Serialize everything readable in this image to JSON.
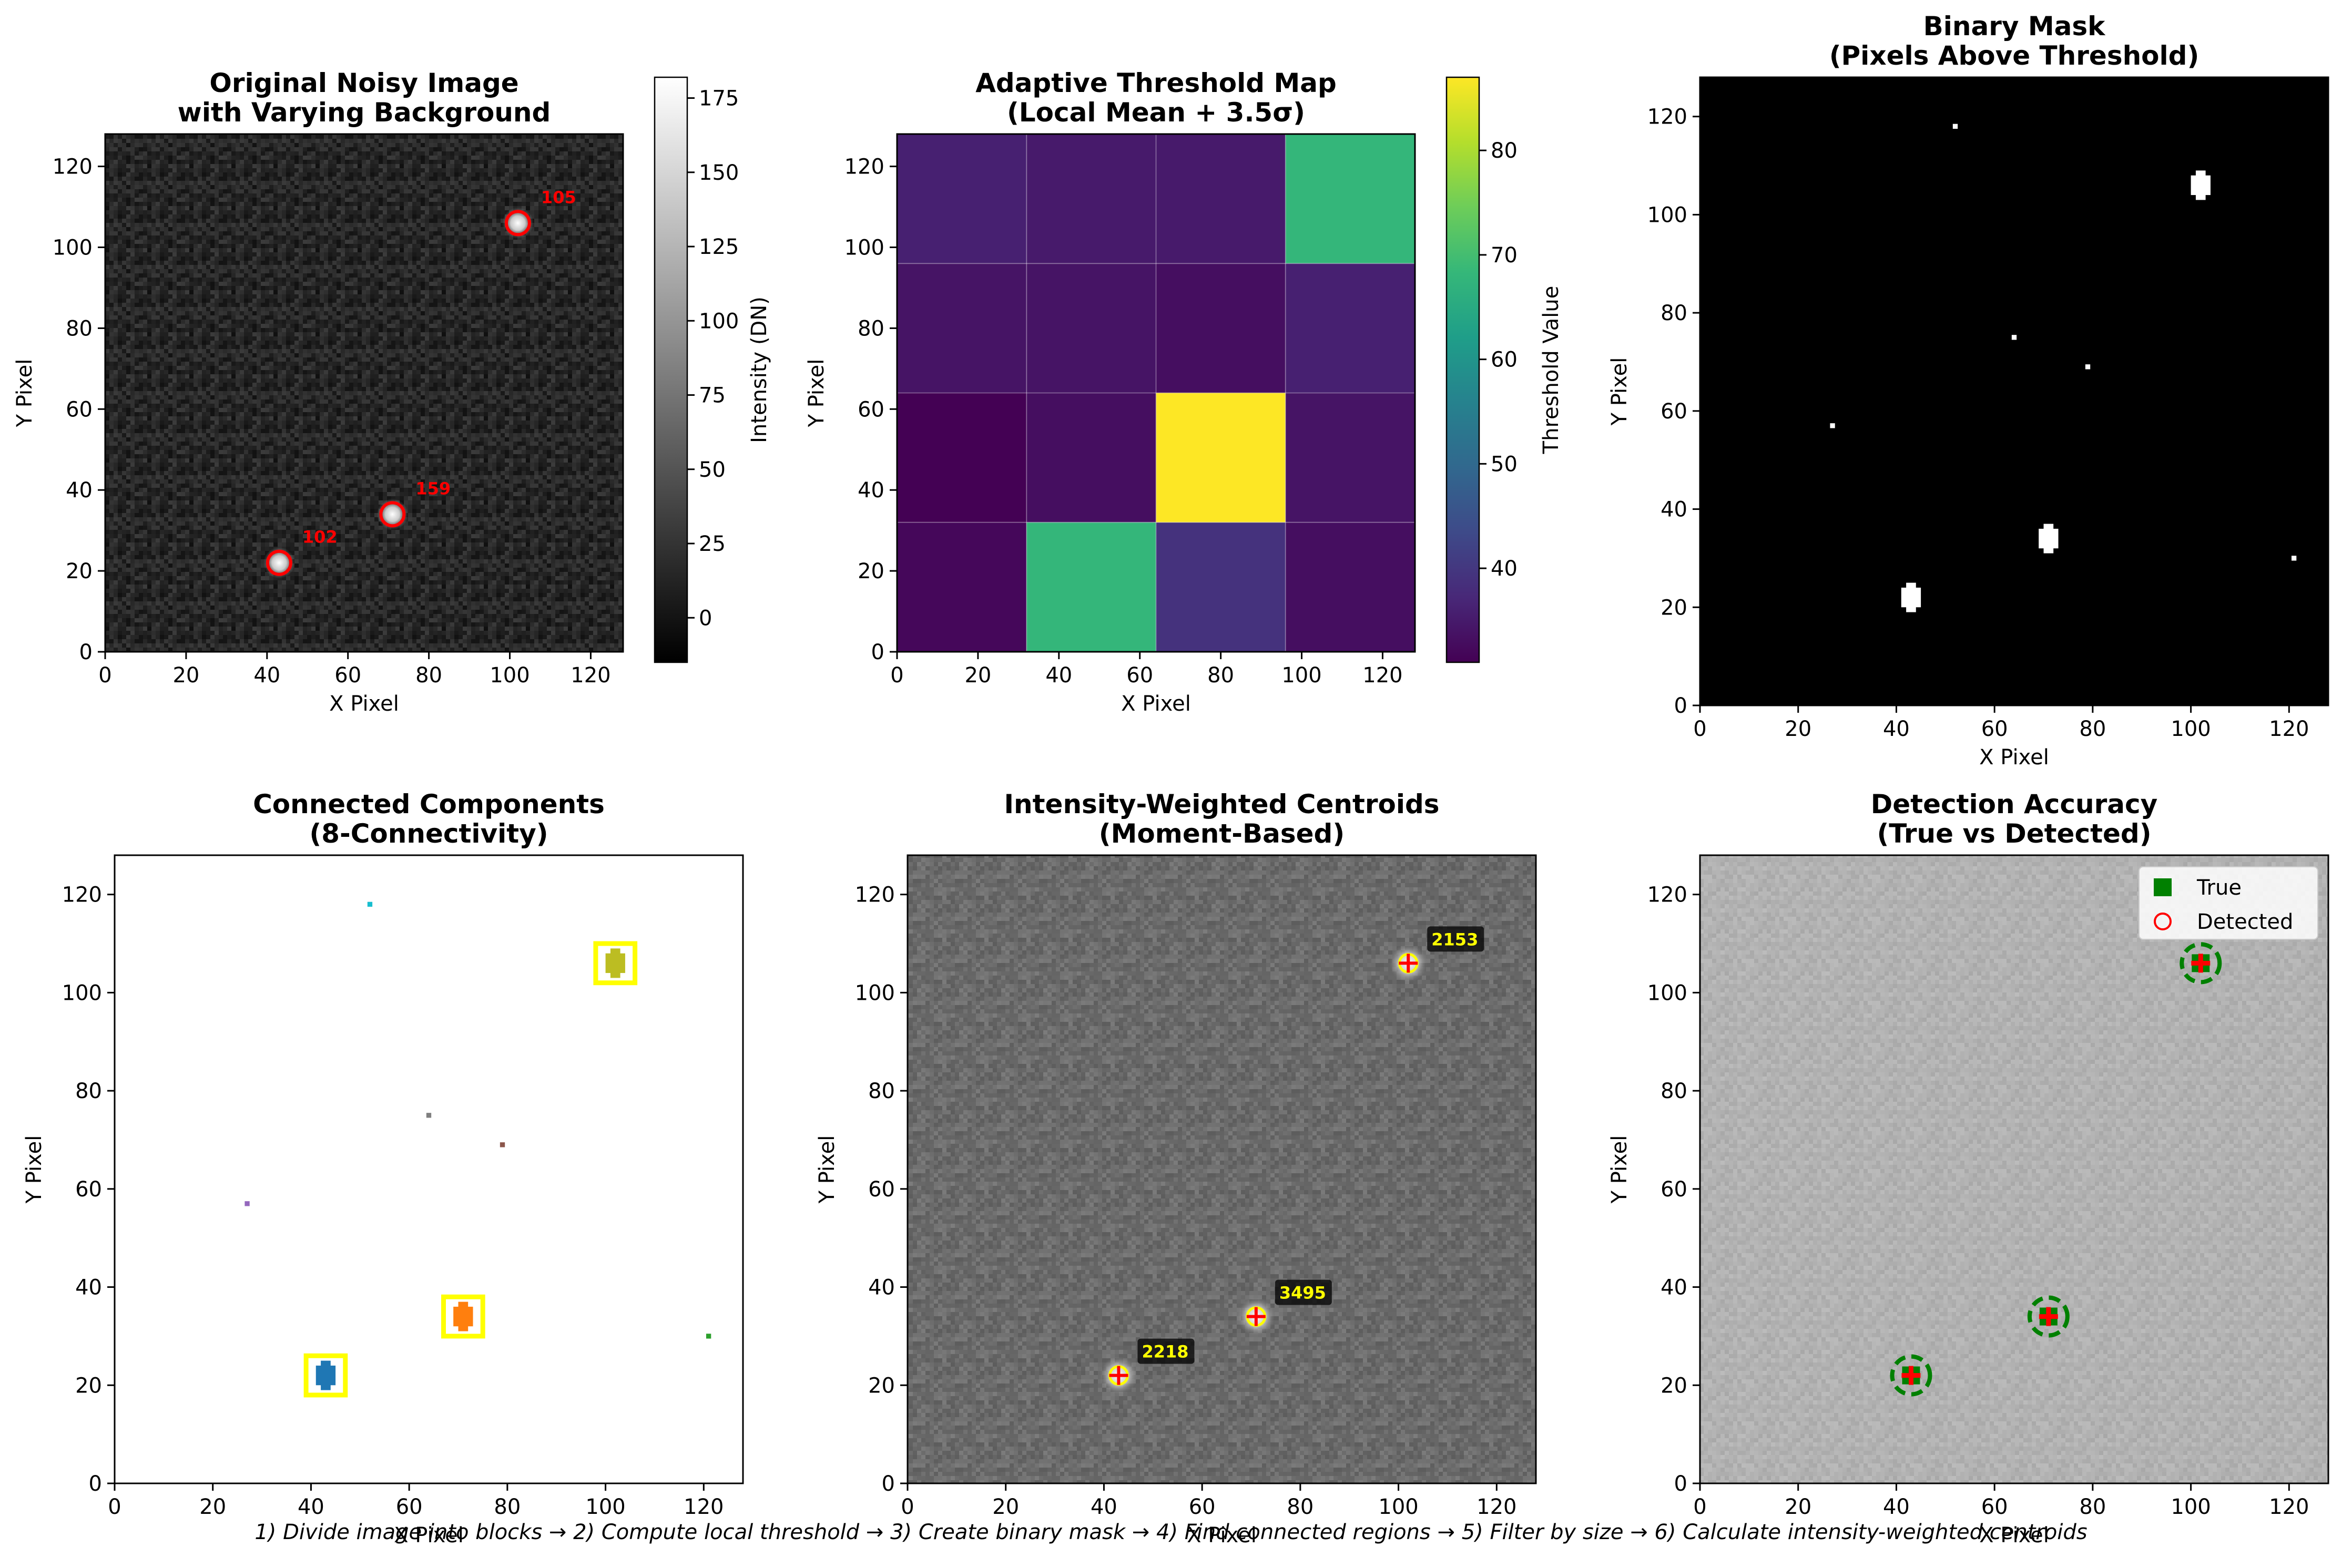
{
  "footer_text": "1) Divide image into blocks → 2) Compute local threshold → 3) Create binary mask → 4) Find connected regions → 5) Filter by size → 6) Calculate intensity-weighted centroids",
  "colors": {
    "true_marker": "#008000",
    "detected_marker": "#ff0000",
    "label_text": "#ffff00",
    "label_box": "#000000",
    "highlight": "#ffff00"
  },
  "chart_data": [
    {
      "id": "p1",
      "type": "heatmap",
      "title": "Original Noisy Image\nwith Varying Background",
      "xlabel": "X Pixel",
      "ylabel": "Y Pixel",
      "xlim": [
        0,
        128
      ],
      "ylim": [
        0,
        128
      ],
      "xticks": [
        0,
        20,
        40,
        60,
        80,
        100,
        120
      ],
      "yticks": [
        0,
        20,
        40,
        60,
        80,
        100,
        120
      ],
      "background": "noisy dark gray",
      "colormap": "gray",
      "colorbar": {
        "label": "Intensity (DN)",
        "range": [
          -15,
          182
        ],
        "ticks": [
          0,
          25,
          50,
          75,
          100,
          125,
          150,
          175
        ]
      },
      "sources": [
        {
          "x": 43,
          "y": 22,
          "label": "102"
        },
        {
          "x": 71,
          "y": 34,
          "label": "159"
        },
        {
          "x": 102,
          "y": 106,
          "label": "105"
        }
      ]
    },
    {
      "id": "p2",
      "type": "heatmap",
      "title": "Adaptive Threshold Map\n(Local Mean + 3.5σ)",
      "xlabel": "X Pixel",
      "ylabel": "Y Pixel",
      "xlim": [
        0,
        128
      ],
      "ylim": [
        0,
        128
      ],
      "xticks": [
        0,
        20,
        40,
        60,
        80,
        100,
        120
      ],
      "yticks": [
        0,
        20,
        40,
        60,
        80,
        100,
        120
      ],
      "colormap": "viridis",
      "colorbar": {
        "label": "Threshold Value",
        "range": [
          31,
          87
        ],
        "ticks": [
          40,
          50,
          60,
          70,
          80
        ]
      },
      "block_size": 32,
      "grid_rows_top_to_bottom": [
        [
          36,
          35,
          35,
          68
        ],
        [
          34,
          34,
          33,
          36
        ],
        [
          31,
          33,
          87,
          34
        ],
        [
          32,
          68,
          39,
          33
        ]
      ]
    },
    {
      "id": "p3",
      "type": "heatmap",
      "title": "Binary Mask\n(Pixels Above Threshold)",
      "xlabel": "X Pixel",
      "ylabel": "Y Pixel",
      "xlim": [
        0,
        128
      ],
      "ylim": [
        0,
        128
      ],
      "xticks": [
        0,
        20,
        40,
        60,
        80,
        100,
        120
      ],
      "yticks": [
        0,
        20,
        40,
        60,
        80,
        100,
        120
      ],
      "regions": [
        {
          "x": 43,
          "y": 22,
          "size": "blob"
        },
        {
          "x": 71,
          "y": 34,
          "size": "blob"
        },
        {
          "x": 102,
          "y": 106,
          "size": "blob"
        },
        {
          "x": 52,
          "y": 118,
          "size": "pixel"
        },
        {
          "x": 64,
          "y": 75,
          "size": "pixel"
        },
        {
          "x": 79,
          "y": 69,
          "size": "pixel"
        },
        {
          "x": 27,
          "y": 57,
          "size": "pixel"
        },
        {
          "x": 121,
          "y": 30,
          "size": "pixel"
        }
      ]
    },
    {
      "id": "p4",
      "type": "heatmap",
      "title": "Connected Components\n(8-Connectivity)",
      "xlabel": "X Pixel",
      "ylabel": "Y Pixel",
      "xlim": [
        0,
        128
      ],
      "ylim": [
        0,
        128
      ],
      "xticks": [
        0,
        20,
        40,
        60,
        80,
        100,
        120
      ],
      "yticks": [
        0,
        20,
        40,
        60,
        80,
        100,
        120
      ],
      "components": [
        {
          "x": 43,
          "y": 22,
          "color": "#1f77b4",
          "highlight": true
        },
        {
          "x": 71,
          "y": 34,
          "color": "#ff7f0e",
          "highlight": true
        },
        {
          "x": 102,
          "y": 106,
          "color": "#bcbd22",
          "highlight": true
        },
        {
          "x": 52,
          "y": 118,
          "color": "#17becf",
          "highlight": false
        },
        {
          "x": 64,
          "y": 75,
          "color": "#7f7f7f",
          "highlight": false
        },
        {
          "x": 79,
          "y": 69,
          "color": "#8c564b",
          "highlight": false
        },
        {
          "x": 27,
          "y": 57,
          "color": "#9467bd",
          "highlight": false
        },
        {
          "x": 121,
          "y": 30,
          "color": "#2ca02c",
          "highlight": false
        }
      ]
    },
    {
      "id": "p5",
      "type": "scatter",
      "title": "Intensity-Weighted Centroids\n(Moment-Based)",
      "xlabel": "X Pixel",
      "ylabel": "Y Pixel",
      "xlim": [
        0,
        128
      ],
      "ylim": [
        0,
        128
      ],
      "xticks": [
        0,
        20,
        40,
        60,
        80,
        100,
        120
      ],
      "yticks": [
        0,
        20,
        40,
        60,
        80,
        100,
        120
      ],
      "background": "noisy mid gray",
      "centroids": [
        {
          "x": 43,
          "y": 22,
          "label": "2218"
        },
        {
          "x": 71,
          "y": 34,
          "label": "3495"
        },
        {
          "x": 102,
          "y": 106,
          "label": "2153"
        }
      ]
    },
    {
      "id": "p6",
      "type": "scatter",
      "title": "Detection Accuracy\n(True vs Detected)",
      "xlabel": "X Pixel",
      "ylabel": "Y Pixel",
      "xlim": [
        0,
        128
      ],
      "ylim": [
        0,
        128
      ],
      "xticks": [
        0,
        20,
        40,
        60,
        80,
        100,
        120
      ],
      "yticks": [
        0,
        20,
        40,
        60,
        80,
        100,
        120
      ],
      "background": "noisy light gray",
      "legend": {
        "placement": "top-right",
        "entries": [
          "True",
          "Detected"
        ]
      },
      "true_positions": [
        {
          "x": 43,
          "y": 22
        },
        {
          "x": 71,
          "y": 34
        },
        {
          "x": 102,
          "y": 106
        }
      ],
      "detected_positions": [
        {
          "x": 43,
          "y": 22
        },
        {
          "x": 71,
          "y": 34
        },
        {
          "x": 102,
          "y": 106
        }
      ]
    }
  ]
}
